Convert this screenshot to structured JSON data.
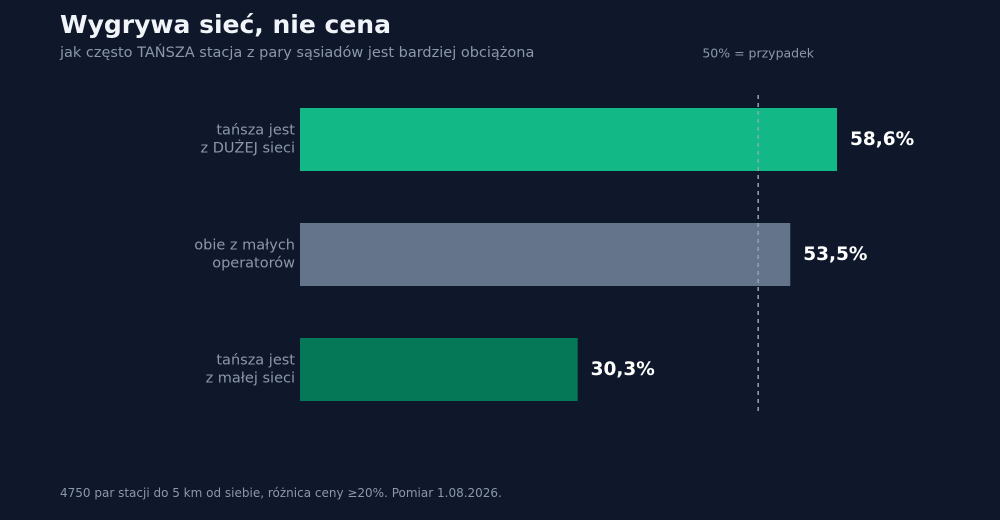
{
  "header": {
    "title": "Wygrywa sieć, nie cena",
    "subtitle": "jak często TAŃSZA stacja z pary sąsiadów jest bardziej obciążona"
  },
  "footnote": "4750 par stacji do 5 km od siebie, różnica ceny ≥20%. Pomiar 1.08.2026.",
  "chart_data": {
    "type": "bar",
    "orientation": "horizontal",
    "title": "Wygrywa sieć, nie cena",
    "subtitle": "jak często TAŃSZA stacja z pary sąsiadów jest bardziej obciążona",
    "xlim": [
      0,
      100
    ],
    "grid": false,
    "legend": "none",
    "categories": [
      [
        "tańsza jest",
        "z DUŻEJ sieci"
      ],
      [
        "obie z małych",
        "operatorów"
      ],
      [
        "tańsza jest",
        "z małej sieci"
      ]
    ],
    "values": [
      58.6,
      53.5,
      30.3
    ],
    "value_labels": [
      "58,6%",
      "53,5%",
      "30,3%"
    ],
    "colors": [
      "#12b886",
      "#64748b",
      "#047857"
    ],
    "reference_line": {
      "value": 50,
      "label": "50% = przypadek",
      "style": "dashed",
      "color": "#94a3b8"
    }
  },
  "style": {
    "background": "#0f172a",
    "title_color": "#f1f5f9",
    "muted_text": "#8b98aa",
    "value_text": "#ffffff"
  }
}
